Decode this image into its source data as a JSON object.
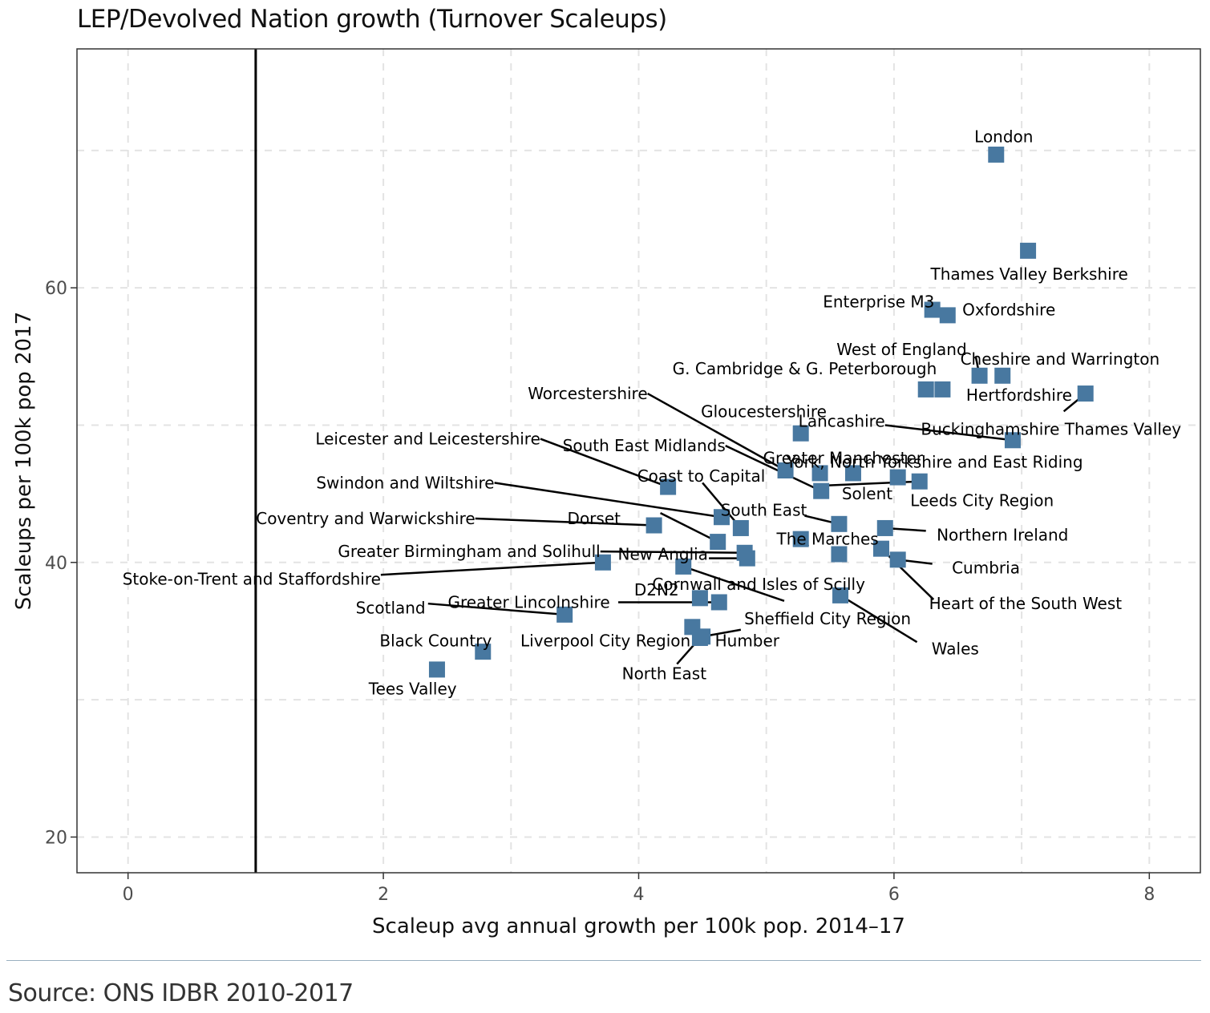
{
  "title": "LEP/Devolved Nation growth (Turnover Scaleups)",
  "source": "Source: ONS IDBR 2010-2017",
  "colors": {
    "point": "#4878a0",
    "grid": "#e3e3e3",
    "frame": "#333333",
    "rule": "#9ab0c0"
  },
  "chart_data": {
    "type": "scatter",
    "title": "LEP/Devolved Nation growth (Turnover Scaleups)",
    "xlabel": "Scaleup avg annual growth per 100k pop. 2014–17",
    "ylabel": "Scaleups per 100k pop 2017",
    "xlim": [
      -0.4,
      8.4
    ],
    "ylim": [
      17.4,
      77.4
    ],
    "x_ticks": [
      0,
      2,
      4,
      6,
      8
    ],
    "x_tick_labels": [
      "0",
      "2",
      "4",
      "6",
      "8"
    ],
    "y_ticks": [
      20,
      40,
      60
    ],
    "y_tick_labels": [
      "20",
      "40",
      "60"
    ],
    "grid": true,
    "reference_line_x": 1,
    "points": [
      {
        "label": "London",
        "x": 6.8,
        "y": 69.7
      },
      {
        "label": "Thames Valley Berkshire",
        "x": 7.05,
        "y": 62.7
      },
      {
        "label": "Enterprise M3",
        "x": 6.3,
        "y": 58.4
      },
      {
        "label": "Oxfordshire",
        "x": 6.42,
        "y": 58.0
      },
      {
        "label": "West of England",
        "x": 6.67,
        "y": 53.6
      },
      {
        "label": "Cheshire and Warrington",
        "x": 6.85,
        "y": 53.6
      },
      {
        "label": "G. Cambridge & G. Peterborough",
        "x": 6.25,
        "y": 52.6
      },
      {
        "label": "Hertfordshire",
        "x": 6.38,
        "y": 52.6
      },
      {
        "label": "Buckinghamshire Thames Valley",
        "x": 7.5,
        "y": 52.3
      },
      {
        "label": "Gloucestershire",
        "x": 5.27,
        "y": 49.4
      },
      {
        "label": "Lancashire",
        "x": 6.93,
        "y": 48.9
      },
      {
        "label": "Worcestershire",
        "x": 5.15,
        "y": 46.7
      },
      {
        "label": "Greater Manchester",
        "x": 5.42,
        "y": 46.5
      },
      {
        "label": "York, North Yorkshire and East Riding",
        "x": 5.68,
        "y": 46.5
      },
      {
        "label": "Leeds City Region",
        "x": 6.03,
        "y": 46.2
      },
      {
        "label": "Solent",
        "x": 6.2,
        "y": 45.9
      },
      {
        "label": "South East Midlands",
        "x": 5.43,
        "y": 45.2
      },
      {
        "label": "Leicester and Leicestershire",
        "x": 4.23,
        "y": 45.5
      },
      {
        "label": "Swindon and Wiltshire",
        "x": 4.65,
        "y": 43.3
      },
      {
        "label": "Coast to Capital",
        "x": 4.8,
        "y": 42.5
      },
      {
        "label": "South East",
        "x": 5.57,
        "y": 42.8
      },
      {
        "label": "Northern Ireland",
        "x": 5.93,
        "y": 42.5
      },
      {
        "label": "Coventry and Warwickshire",
        "x": 4.12,
        "y": 42.7
      },
      {
        "label": "Dorset",
        "x": 4.62,
        "y": 41.5
      },
      {
        "label": "The Marches",
        "x": 5.27,
        "y": 41.7
      },
      {
        "label": "Greater Birmingham and Solihull",
        "x": 4.83,
        "y": 40.7
      },
      {
        "label": "New Anglia",
        "x": 4.85,
        "y": 40.3
      },
      {
        "label": "Cornwall and Isles of Scilly",
        "x": 5.57,
        "y": 40.6
      },
      {
        "label": "Heart of the South West",
        "x": 5.9,
        "y": 41.0
      },
      {
        "label": "Cumbria",
        "x": 6.03,
        "y": 40.2
      },
      {
        "label": "Stoke-on-Trent and Staffordshire",
        "x": 3.72,
        "y": 40.0
      },
      {
        "label": "Sheffield City Region",
        "x": 4.35,
        "y": 39.7
      },
      {
        "label": "D2N2",
        "x": 4.48,
        "y": 37.4
      },
      {
        "label": "Wales",
        "x": 5.58,
        "y": 37.6
      },
      {
        "label": "Greater Lincolnshire",
        "x": 4.63,
        "y": 37.1
      },
      {
        "label": "Scotland",
        "x": 3.42,
        "y": 36.2
      },
      {
        "label": "Liverpool City Region",
        "x": 4.42,
        "y": 35.3
      },
      {
        "label": "Humber",
        "x": 4.5,
        "y": 34.6
      },
      {
        "label": "North East",
        "x": 4.48,
        "y": 34.5
      },
      {
        "label": "Black Country",
        "x": 2.78,
        "y": 33.5
      },
      {
        "label": "Tees Valley",
        "x": 2.42,
        "y": 32.2
      }
    ]
  },
  "annotations": [
    {
      "text": "London",
      "x": 6.86,
      "y": 71.0,
      "anchor": "middle",
      "line": false
    },
    {
      "text": "Thames Valley Berkshire",
      "x": 7.06,
      "y": 61.0,
      "anchor": "middle",
      "line": false
    },
    {
      "text": "Enterprise M3",
      "x": 5.88,
      "y": 59.0,
      "anchor": "middle",
      "line": false
    },
    {
      "text": "Oxfordshire",
      "x": 6.9,
      "y": 58.4,
      "anchor": "middle",
      "line": false
    },
    {
      "text": "West of England",
      "x": 6.57,
      "y": 55.5,
      "anchor": "end",
      "line": true,
      "lx": 6.64,
      "ly": 55.0
    },
    {
      "text": "Cheshire and Warrington",
      "x": 7.3,
      "y": 54.8,
      "anchor": "middle",
      "line": false
    },
    {
      "text": "G. Cambridge & G. Peterborough",
      "x": 5.3,
      "y": 54.1,
      "anchor": "middle",
      "line": false
    },
    {
      "text": "Hertfordshire",
      "x": 6.98,
      "y": 52.2,
      "anchor": "middle",
      "line": false
    },
    {
      "text": "Buckinghamshire Thames Valley",
      "x": 7.23,
      "y": 49.7,
      "anchor": "middle",
      "line": true,
      "lx": 7.33,
      "ly": 51.0
    },
    {
      "text": "Gloucestershire",
      "x": 4.98,
      "y": 51.0,
      "anchor": "middle",
      "line": false
    },
    {
      "text": "Lancashire",
      "x": 5.93,
      "y": 50.3,
      "anchor": "end",
      "line": true,
      "lx": 5.93,
      "ly": 50.0
    },
    {
      "text": "Worcestershire",
      "x": 4.07,
      "y": 52.3,
      "anchor": "end",
      "line": true,
      "lx": 4.07,
      "ly": 52.3
    },
    {
      "text": "Greater Manchester",
      "x": 5.6,
      "y": 47.6,
      "anchor": "middle",
      "line": false
    },
    {
      "text": "York, North Yorkshire and East Riding",
      "x": 7.48,
      "y": 47.3,
      "anchor": "end",
      "line": false
    },
    {
      "text": "Leeds City Region",
      "x": 6.69,
      "y": 44.5,
      "anchor": "middle",
      "line": false
    },
    {
      "text": "Solent",
      "x": 5.79,
      "y": 45.0,
      "anchor": "middle",
      "line": true,
      "lx": 5.45,
      "ly": 45.6
    },
    {
      "text": "South East Midlands",
      "x": 4.68,
      "y": 48.5,
      "anchor": "end",
      "line": true,
      "lx": 4.68,
      "ly": 48.5
    },
    {
      "text": "Leicester and Leicestershire",
      "x": 3.23,
      "y": 49.0,
      "anchor": "end",
      "line": true,
      "lx": 3.23,
      "ly": 49.0
    },
    {
      "text": "Swindon and Wiltshire",
      "x": 2.87,
      "y": 45.8,
      "anchor": "end",
      "line": true,
      "lx": 2.87,
      "ly": 45.8
    },
    {
      "text": "Coast to Capital",
      "x": 4.49,
      "y": 46.3,
      "anchor": "middle",
      "line": true,
      "lx": 4.5,
      "ly": 45.8
    },
    {
      "text": "South East",
      "x": 4.98,
      "y": 43.8,
      "anchor": "middle",
      "line": true,
      "lx": 5.3,
      "ly": 43.4
    },
    {
      "text": "Northern Ireland",
      "x": 6.85,
      "y": 42.0,
      "anchor": "middle",
      "line": true,
      "lx": 6.25,
      "ly": 42.3
    },
    {
      "text": "Coventry and Warwickshire",
      "x": 2.72,
      "y": 43.2,
      "anchor": "end",
      "line": true,
      "lx": 2.72,
      "ly": 43.2
    },
    {
      "text": "Dorset",
      "x": 3.65,
      "y": 43.2,
      "anchor": "middle",
      "line": true,
      "lx": 4.17,
      "ly": 43.6
    },
    {
      "text": "The Marches",
      "x": 5.48,
      "y": 41.7,
      "anchor": "middle",
      "line": true,
      "lx": 5.33,
      "ly": 41.2
    },
    {
      "text": "Greater Birmingham and Solihull",
      "x": 3.7,
      "y": 40.8,
      "anchor": "end",
      "line": true,
      "lx": 3.7,
      "ly": 40.8
    },
    {
      "text": "New Anglia",
      "x": 4.19,
      "y": 40.6,
      "anchor": "middle",
      "line": true,
      "lx": 4.55,
      "ly": 40.3
    },
    {
      "text": "Cornwall and Isles of Scilly",
      "x": 4.94,
      "y": 38.4,
      "anchor": "middle",
      "line": false
    },
    {
      "text": "Heart of the South West",
      "x": 7.03,
      "y": 37.0,
      "anchor": "middle",
      "line": true,
      "lx": 6.31,
      "ly": 37.3
    },
    {
      "text": "Cumbria",
      "x": 6.72,
      "y": 39.6,
      "anchor": "middle",
      "line": true,
      "lx": 6.3,
      "ly": 39.9
    },
    {
      "text": "Stoke-on-Trent and Staffordshire",
      "x": 1.98,
      "y": 38.8,
      "anchor": "end",
      "line": true,
      "lx": 1.98,
      "ly": 39.1
    },
    {
      "text": "Sheffield City Region",
      "x": 5.48,
      "y": 35.9,
      "anchor": "middle",
      "line": true,
      "lx": 5.14,
      "ly": 37.2
    },
    {
      "text": "D2N2",
      "x": 4.14,
      "y": 38.0,
      "anchor": "middle",
      "line": false
    },
    {
      "text": "Wales",
      "x": 6.48,
      "y": 33.7,
      "anchor": "middle",
      "line": true,
      "lx": 6.18,
      "ly": 34.2
    },
    {
      "text": "Greater Lincolnshire",
      "x": 3.14,
      "y": 37.1,
      "anchor": "middle",
      "line": true,
      "lx": 3.84,
      "ly": 37.1
    },
    {
      "text": "Scotland",
      "x": 2.33,
      "y": 36.7,
      "anchor": "end",
      "line": true,
      "lx": 2.35,
      "ly": 37.0
    },
    {
      "text": "Liverpool City Region",
      "x": 3.74,
      "y": 34.3,
      "anchor": "middle",
      "line": false
    },
    {
      "text": "Humber",
      "x": 4.85,
      "y": 34.3,
      "anchor": "middle",
      "line": true,
      "lx": 4.8,
      "ly": 35.1
    },
    {
      "text": "North East",
      "x": 4.2,
      "y": 31.9,
      "anchor": "middle",
      "line": true,
      "lx": 4.3,
      "ly": 32.6
    },
    {
      "text": "Black Country",
      "x": 2.41,
      "y": 34.3,
      "anchor": "middle",
      "line": false
    },
    {
      "text": "Tees Valley",
      "x": 2.23,
      "y": 30.8,
      "anchor": "middle",
      "line": false
    }
  ]
}
